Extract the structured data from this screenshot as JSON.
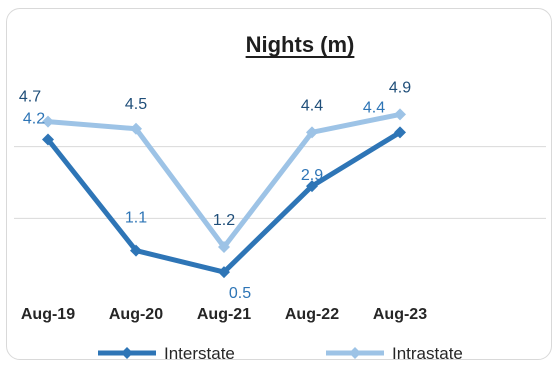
{
  "chart_data": {
    "type": "line",
    "title": "Nights (m)",
    "categories": [
      "Aug-19",
      "Aug-20",
      "Aug-21",
      "Aug-22",
      "Aug-23"
    ],
    "series": [
      {
        "name": "Interstate",
        "color": "#2e75b6",
        "values": [
          4.2,
          1.1,
          0.5,
          2.9,
          4.4
        ],
        "labels": [
          "4.2",
          "1.1",
          "0.5",
          "2.9",
          "4.4"
        ]
      },
      {
        "name": "Intrastate",
        "color": "#9dc3e6",
        "values": [
          4.7,
          4.5,
          1.2,
          4.4,
          4.9
        ],
        "labels": [
          "4.7",
          "4.5",
          "1.2",
          "4.4",
          "4.9"
        ]
      }
    ],
    "xlabel": "",
    "ylabel": "",
    "ylim": [
      0,
      6
    ],
    "grid": true,
    "legend": "bottom"
  }
}
